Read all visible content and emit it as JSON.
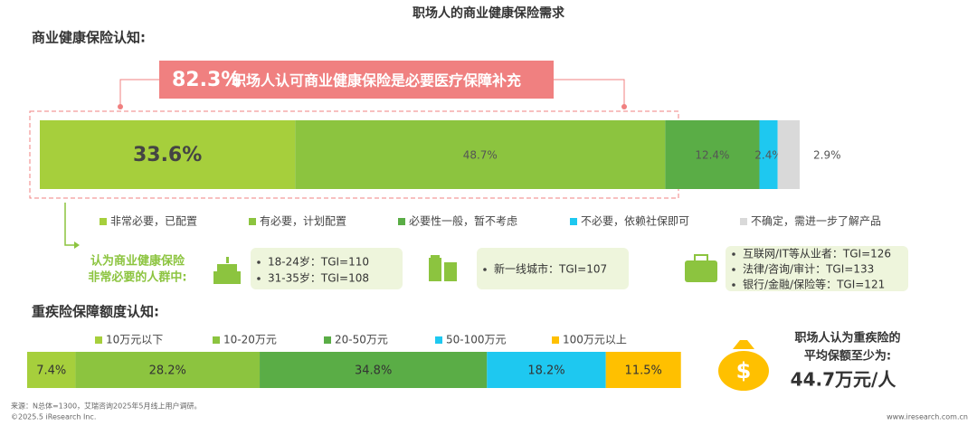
{
  "title": "职场人的商业健康保险需求",
  "section1": "商业健康保险认知:",
  "callout": {
    "percent": "82.3%",
    "text": "职场人认可商业健康保险是必要医疗保障补充"
  },
  "group_label": [
    "认为商业健康保险",
    "非常必要的人群中:"
  ],
  "groups": [
    [
      "18-24岁：TGI=110",
      "31-35岁：TGI=108"
    ],
    [
      "新一线城市：TGI=107"
    ],
    [
      "互联网/IT等从业者：TGI=126",
      "法律/咨询/审计：TGI=133",
      "银行/金融/保险等：TGI=121"
    ]
  ],
  "section2": "重疾险保障额度认知:",
  "side": {
    "text": [
      "职场人认为重疾险的",
      "平均保额至少为:"
    ],
    "amount": "44.7万元/人"
  },
  "footer": {
    "source": "来源：N总体=1300，艾瑞咨询2025年5月线上用户调研。",
    "copyright": "©2025.5 iResearch Inc.",
    "site": "www.iresearch.com.cn"
  },
  "chart_data": [
    {
      "type": "stacked_bar",
      "xlim": [
        0,
        100
      ],
      "series": [
        {
          "name": "非常必要，已配置",
          "color": "#a6cf3c",
          "values": [
            33.6
          ],
          "value_labels": [
            "33.6%"
          ]
        },
        {
          "name": "有必要，计划配置",
          "color": "#8cc43f",
          "values": [
            48.7
          ],
          "value_labels": [
            "48.7%"
          ]
        },
        {
          "name": "必要性一般，暂不考虑",
          "color": "#5aad46",
          "values": [
            12.4
          ],
          "value_labels": [
            "12.4%"
          ]
        },
        {
          "name": "不必要，依赖社保即可",
          "color": "#1ec8f0",
          "values": [
            2.4
          ],
          "value_labels": [
            "2.4%"
          ]
        },
        {
          "name": "不确定，需进一步了解产品",
          "color": "#d9d9d9",
          "values": [
            2.9
          ],
          "value_labels": [
            "2.9%"
          ]
        }
      ]
    },
    {
      "type": "stacked_bar",
      "xlim": [
        0,
        100
      ],
      "series": [
        {
          "name": "10万元以下",
          "color": "#a6cf3c",
          "values": [
            7.4
          ],
          "value_labels": [
            "7.4%"
          ]
        },
        {
          "name": "10-20万元",
          "color": "#8cc43f",
          "values": [
            28.2
          ],
          "value_labels": [
            "28.2%"
          ]
        },
        {
          "name": "20-50万元",
          "color": "#5aad46",
          "values": [
            34.8
          ],
          "value_labels": [
            "34.8%"
          ]
        },
        {
          "name": "50-100万元",
          "color": "#1ec8f0",
          "values": [
            18.2
          ],
          "value_labels": [
            "18.2%"
          ]
        },
        {
          "name": "100万元以上",
          "color": "#ffc000",
          "values": [
            11.5
          ],
          "value_labels": [
            "11.5%"
          ]
        }
      ]
    }
  ]
}
